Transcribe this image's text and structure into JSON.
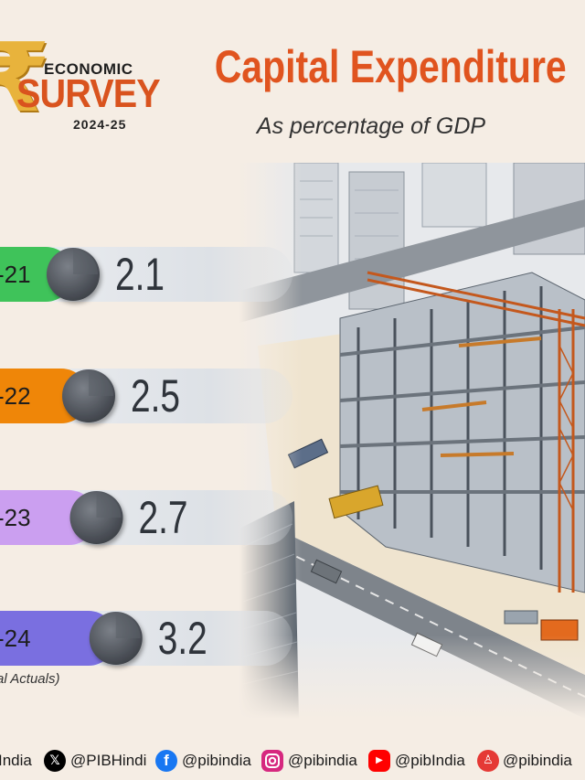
{
  "logo": {
    "line1": "ECONOMIC",
    "line2": "SURVEY",
    "line3": "2024-25"
  },
  "title": "Capital Expenditure",
  "subtitle": "As percentage of GDP",
  "note": "al Actuals)",
  "chart_data": {
    "type": "bar",
    "title": "Capital Expenditure",
    "subtitle": "As percentage of GDP",
    "unit": "As percentage of GDP",
    "categories": [
      "-21",
      "-22",
      "-23",
      "-24"
    ],
    "values": [
      2.1,
      2.5,
      2.7,
      3.2
    ],
    "value_labels": [
      "2.1",
      "2.5",
      "2.7",
      "3.2"
    ],
    "colors": [
      "#3fc35a",
      "#ef8608",
      "#cb9ff0",
      "#7a6fe0"
    ],
    "xlabel": "",
    "ylabel": "",
    "grid": false,
    "legend": "none",
    "annotation": "al Actuals)"
  },
  "footer": {
    "handles": [
      {
        "icon": "truncated-handle",
        "text": "India"
      },
      {
        "icon": "x-icon",
        "text": "@PIBHindi",
        "color": "#000000"
      },
      {
        "icon": "facebook-icon",
        "text": "@pibindia",
        "color": "#1877f2"
      },
      {
        "icon": "instagram-icon",
        "text": "@pibindia",
        "color": "#d6287f"
      },
      {
        "icon": "youtube-icon",
        "text": "@pibIndia",
        "color": "#ff0000"
      },
      {
        "icon": "koo-icon",
        "text": "@pibindia",
        "color": "#e53935"
      }
    ]
  }
}
